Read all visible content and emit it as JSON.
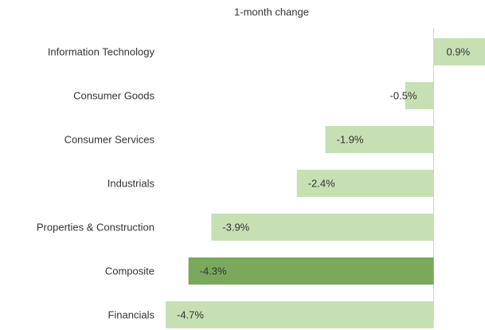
{
  "chart_data": {
    "type": "hbar",
    "title": "1-month change",
    "categories": [
      "Information Technology",
      "Consumer Goods",
      "Consumer Services",
      "Industrials",
      "Properties & Construction",
      "Composite",
      "Financials"
    ],
    "values": [
      0.9,
      -0.5,
      -1.9,
      -2.4,
      -3.9,
      -4.3,
      -4.7
    ],
    "value_labels": [
      "0.9%",
      "-0.5%",
      "-1.9%",
      "-2.4%",
      "-3.9%",
      "-4.3%",
      "-4.7%"
    ],
    "colors": [
      "#c6e0b4",
      "#c6e0b4",
      "#c6e0b4",
      "#c6e0b4",
      "#c6e0b4",
      "#7aa95c",
      "#c6e0b4"
    ]
  }
}
